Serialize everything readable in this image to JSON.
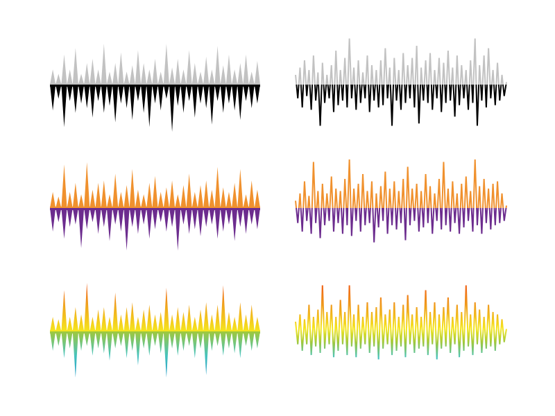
{
  "waveforms": [
    {
      "name": "waveform-filled-gray-black",
      "style": "filled",
      "palette": "mono",
      "colors": {
        "top": "#c2c2c2",
        "bottom": "#000000"
      },
      "top": [
        0.35,
        0.25,
        0.7,
        0.35,
        0.85,
        0.25,
        0.5,
        0.6,
        0.35,
        0.95,
        0.3,
        0.5,
        0.75,
        0.3,
        0.45,
        0.8,
        0.5,
        0.35,
        0.6,
        0.3,
        0.95,
        0.4,
        0.6,
        0.35,
        0.8,
        0.5,
        0.3,
        0.65,
        0.35,
        0.9,
        0.45,
        0.7,
        0.35,
        0.5,
        0.7,
        0.3,
        0.55
      ],
      "bottom": [
        0.55,
        0.3,
        0.9,
        0.35,
        0.6,
        0.4,
        0.5,
        0.7,
        0.35,
        0.6,
        0.45,
        0.8,
        0.4,
        0.5,
        0.75,
        0.35,
        0.6,
        0.9,
        0.4,
        0.55,
        0.3,
        1.0,
        0.45,
        0.6,
        0.35,
        0.7,
        0.4,
        0.5,
        0.85,
        0.35,
        0.6,
        0.4,
        0.55,
        0.75,
        0.35,
        0.5,
        0.4
      ]
    },
    {
      "name": "waveform-line-gray-black",
      "style": "line",
      "palette": "mono",
      "colors": {
        "top": "#c2c2c2",
        "bottom": "#000000"
      },
      "top": [
        0.2,
        0.35,
        0.5,
        0.3,
        0.6,
        0.25,
        0.45,
        0.2,
        0.4,
        0.7,
        0.3,
        0.55,
        0.95,
        0.35,
        0.5,
        0.25,
        0.6,
        0.4,
        0.3,
        0.5,
        0.75,
        0.35,
        0.55,
        0.3,
        0.65,
        0.4,
        0.55,
        0.8,
        0.35,
        0.5,
        0.65,
        0.3,
        0.55,
        0.45,
        0.7,
        0.35,
        0.6,
        0.4,
        0.3,
        0.5,
        0.95,
        0.4,
        0.6,
        0.75,
        0.3,
        0.45,
        0.2
      ],
      "bottom": [
        0.3,
        0.5,
        0.25,
        0.55,
        0.35,
        0.9,
        0.4,
        0.3,
        0.6,
        0.45,
        0.35,
        0.5,
        0.3,
        0.55,
        0.4,
        0.3,
        0.6,
        0.35,
        0.5,
        0.45,
        0.3,
        0.9,
        0.35,
        0.55,
        0.4,
        0.3,
        0.5,
        0.85,
        0.35,
        0.4,
        0.55,
        0.3,
        0.6,
        0.4,
        0.35,
        0.7,
        0.45,
        0.3,
        0.55,
        0.4,
        0.9,
        0.35,
        0.5,
        0.3,
        0.45,
        0.35,
        0.25
      ]
    },
    {
      "name": "waveform-filled-orange-purple",
      "style": "filled",
      "palette": "duo",
      "colors": {
        "top": "#f0912e",
        "bottom": "#6c2c8e"
      },
      "top": [
        0.35,
        0.25,
        0.95,
        0.35,
        0.55,
        0.3,
        1.0,
        0.4,
        0.55,
        0.6,
        0.3,
        0.75,
        0.35,
        0.5,
        0.85,
        0.4,
        0.3,
        0.55,
        0.7,
        0.35,
        0.45,
        0.6,
        0.3,
        0.5,
        0.75,
        0.35,
        0.5,
        0.6,
        0.4,
        0.9,
        0.45,
        0.35,
        0.55,
        0.85,
        0.3,
        0.6,
        0.4
      ],
      "bottom": [
        0.5,
        0.3,
        0.65,
        0.4,
        0.35,
        0.85,
        0.45,
        0.3,
        0.55,
        0.4,
        0.7,
        0.35,
        0.5,
        0.9,
        0.4,
        0.55,
        0.35,
        0.65,
        0.45,
        0.3,
        0.5,
        0.4,
        0.9,
        0.35,
        0.55,
        0.45,
        0.6,
        0.4,
        0.35,
        0.65,
        0.5,
        0.35,
        0.7,
        0.4,
        0.55,
        0.35,
        0.45
      ]
    },
    {
      "name": "waveform-line-orange-purple",
      "style": "line",
      "palette": "duo",
      "colors": {
        "top": "#f0912e",
        "bottom": "#6c2c8e"
      },
      "top": [
        0.15,
        0.3,
        0.55,
        0.25,
        0.95,
        0.35,
        0.5,
        0.3,
        0.65,
        0.4,
        0.35,
        0.6,
        1.0,
        0.4,
        0.5,
        0.7,
        0.35,
        0.55,
        0.3,
        0.45,
        0.75,
        0.4,
        0.55,
        0.35,
        0.6,
        0.85,
        0.4,
        0.5,
        0.35,
        0.7,
        0.45,
        0.3,
        0.6,
        0.95,
        0.4,
        0.55,
        0.3,
        0.5,
        0.65,
        0.35,
        1.0,
        0.45,
        0.6,
        0.4,
        0.5,
        0.55,
        0.3
      ],
      "bottom": [
        0.35,
        0.55,
        0.3,
        0.6,
        0.35,
        0.7,
        0.4,
        0.3,
        0.55,
        0.35,
        0.6,
        0.4,
        0.65,
        0.3,
        0.55,
        0.4,
        0.35,
        0.8,
        0.45,
        0.3,
        0.6,
        0.4,
        0.5,
        0.35,
        0.75,
        0.4,
        0.3,
        0.55,
        0.45,
        0.35,
        0.6,
        0.3,
        0.5,
        0.4,
        0.55,
        0.35,
        0.6,
        0.45,
        0.3,
        0.55,
        0.4,
        0.6,
        0.35,
        0.5,
        0.4,
        0.35,
        0.3
      ]
    },
    {
      "name": "waveform-filled-rainbow",
      "style": "filled",
      "palette": "rainbow",
      "colors": {
        "top_high": "#f05a14",
        "top_mid": "#f0a51e",
        "top_low": "#f5e61e",
        "bottom_high": "#a0c83c",
        "bottom_mid": "#46c3be",
        "bottom_low": "#1e96c8"
      },
      "top": [
        0.3,
        0.25,
        0.85,
        0.3,
        0.5,
        0.35,
        1.0,
        0.3,
        0.45,
        0.5,
        0.3,
        0.8,
        0.35,
        0.5,
        0.6,
        0.3,
        0.45,
        0.55,
        0.35,
        0.4,
        0.9,
        0.35,
        0.5,
        0.4,
        0.55,
        0.3,
        0.45,
        0.6,
        0.35,
        0.55,
        0.95,
        0.4,
        0.3,
        0.6,
        0.35,
        0.55,
        0.3
      ],
      "bottom": [
        0.4,
        0.3,
        0.55,
        0.35,
        0.95,
        0.4,
        0.3,
        0.5,
        0.35,
        0.45,
        0.6,
        0.35,
        0.3,
        0.55,
        0.4,
        0.7,
        0.35,
        0.5,
        0.3,
        0.45,
        0.95,
        0.35,
        0.5,
        0.4,
        0.3,
        0.55,
        0.35,
        0.9,
        0.4,
        0.3,
        0.5,
        0.35,
        0.45,
        0.55,
        0.3,
        0.4,
        0.35
      ]
    },
    {
      "name": "waveform-line-rainbow",
      "style": "line",
      "palette": "rainbow",
      "colors": {
        "top_high": "#f05a14",
        "top_mid": "#f0a51e",
        "top_low": "#f5e61e",
        "bottom_high": "#a0c83c",
        "bottom_mid": "#46c3be",
        "bottom_low": "#1e96c8"
      },
      "top": [
        0.2,
        0.35,
        0.25,
        0.55,
        0.3,
        0.45,
        0.95,
        0.4,
        0.55,
        0.3,
        0.65,
        0.4,
        0.95,
        0.35,
        0.55,
        0.3,
        0.6,
        0.4,
        0.5,
        0.7,
        0.35,
        0.45,
        0.6,
        0.3,
        0.55,
        0.75,
        0.35,
        0.5,
        0.3,
        0.85,
        0.4,
        0.6,
        0.35,
        0.5,
        0.7,
        0.3,
        0.55,
        0.4,
        0.95,
        0.35,
        0.6,
        0.45,
        0.3,
        0.55,
        0.4,
        0.35,
        0.25
      ],
      "bottom": [
        0.3,
        0.45,
        0.3,
        0.55,
        0.35,
        0.5,
        0.4,
        0.3,
        0.6,
        0.45,
        0.3,
        0.55,
        0.35,
        0.6,
        0.4,
        0.3,
        0.5,
        0.35,
        0.65,
        0.4,
        0.3,
        0.55,
        0.45,
        0.35,
        0.6,
        0.3,
        0.5,
        0.4,
        0.35,
        0.55,
        0.3,
        0.65,
        0.4,
        0.35,
        0.5,
        0.3,
        0.6,
        0.45,
        0.35,
        0.55,
        0.3,
        0.5,
        0.4,
        0.35,
        0.45,
        0.3,
        0.25
      ]
    }
  ]
}
